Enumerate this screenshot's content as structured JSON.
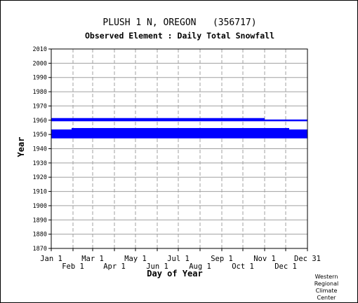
{
  "chart_data": {
    "type": "bar",
    "title": "PLUSH 1 N, OREGON   (356717)",
    "subtitle": "Observed Element : Daily Total Snowfall",
    "xlabel": "Day of Year",
    "ylabel": "Year",
    "ylim": [
      1870,
      2010
    ],
    "yticks": [
      1870,
      1880,
      1890,
      1900,
      1910,
      1920,
      1930,
      1940,
      1950,
      1960,
      1970,
      1980,
      1990,
      2000,
      2010
    ],
    "xlim": [
      1,
      366
    ],
    "xticks_top_row": [
      {
        "label": "Jan 1",
        "day": 1
      },
      {
        "label": "Mar 1",
        "day": 60
      },
      {
        "label": "May 1",
        "day": 121
      },
      {
        "label": "Jul 1",
        "day": 182
      },
      {
        "label": "Sep 1",
        "day": 244
      },
      {
        "label": "Nov 1",
        "day": 305
      },
      {
        "label": "Dec 31",
        "day": 366
      }
    ],
    "xticks_bottom_row": [
      {
        "label": "Feb 1",
        "day": 32
      },
      {
        "label": "Apr 1",
        "day": 91
      },
      {
        "label": "Jun 1",
        "day": 152
      },
      {
        "label": "Aug 1",
        "day": 213
      },
      {
        "label": "Oct 1",
        "day": 274
      },
      {
        "label": "Dec 1",
        "day": 335
      }
    ],
    "grid": true,
    "series_color": "#0000ff",
    "records": [
      {
        "year": 1961,
        "start_day": 1,
        "end_day": 305
      },
      {
        "year": 1960,
        "start_day": 1,
        "end_day": 366
      },
      {
        "year": 1954,
        "start_day": 30,
        "end_day": 340
      },
      {
        "year": 1953,
        "start_day": 1,
        "end_day": 366
      },
      {
        "year": 1952,
        "start_day": 1,
        "end_day": 366
      },
      {
        "year": 1951,
        "start_day": 1,
        "end_day": 366
      },
      {
        "year": 1950,
        "start_day": 1,
        "end_day": 366
      },
      {
        "year": 1949,
        "start_day": 1,
        "end_day": 366
      },
      {
        "year": 1948,
        "start_day": 1,
        "end_day": 366
      }
    ]
  },
  "credit": {
    "line1": "Western",
    "line2": "Regional",
    "line3": "Climate",
    "line4": "Center"
  }
}
